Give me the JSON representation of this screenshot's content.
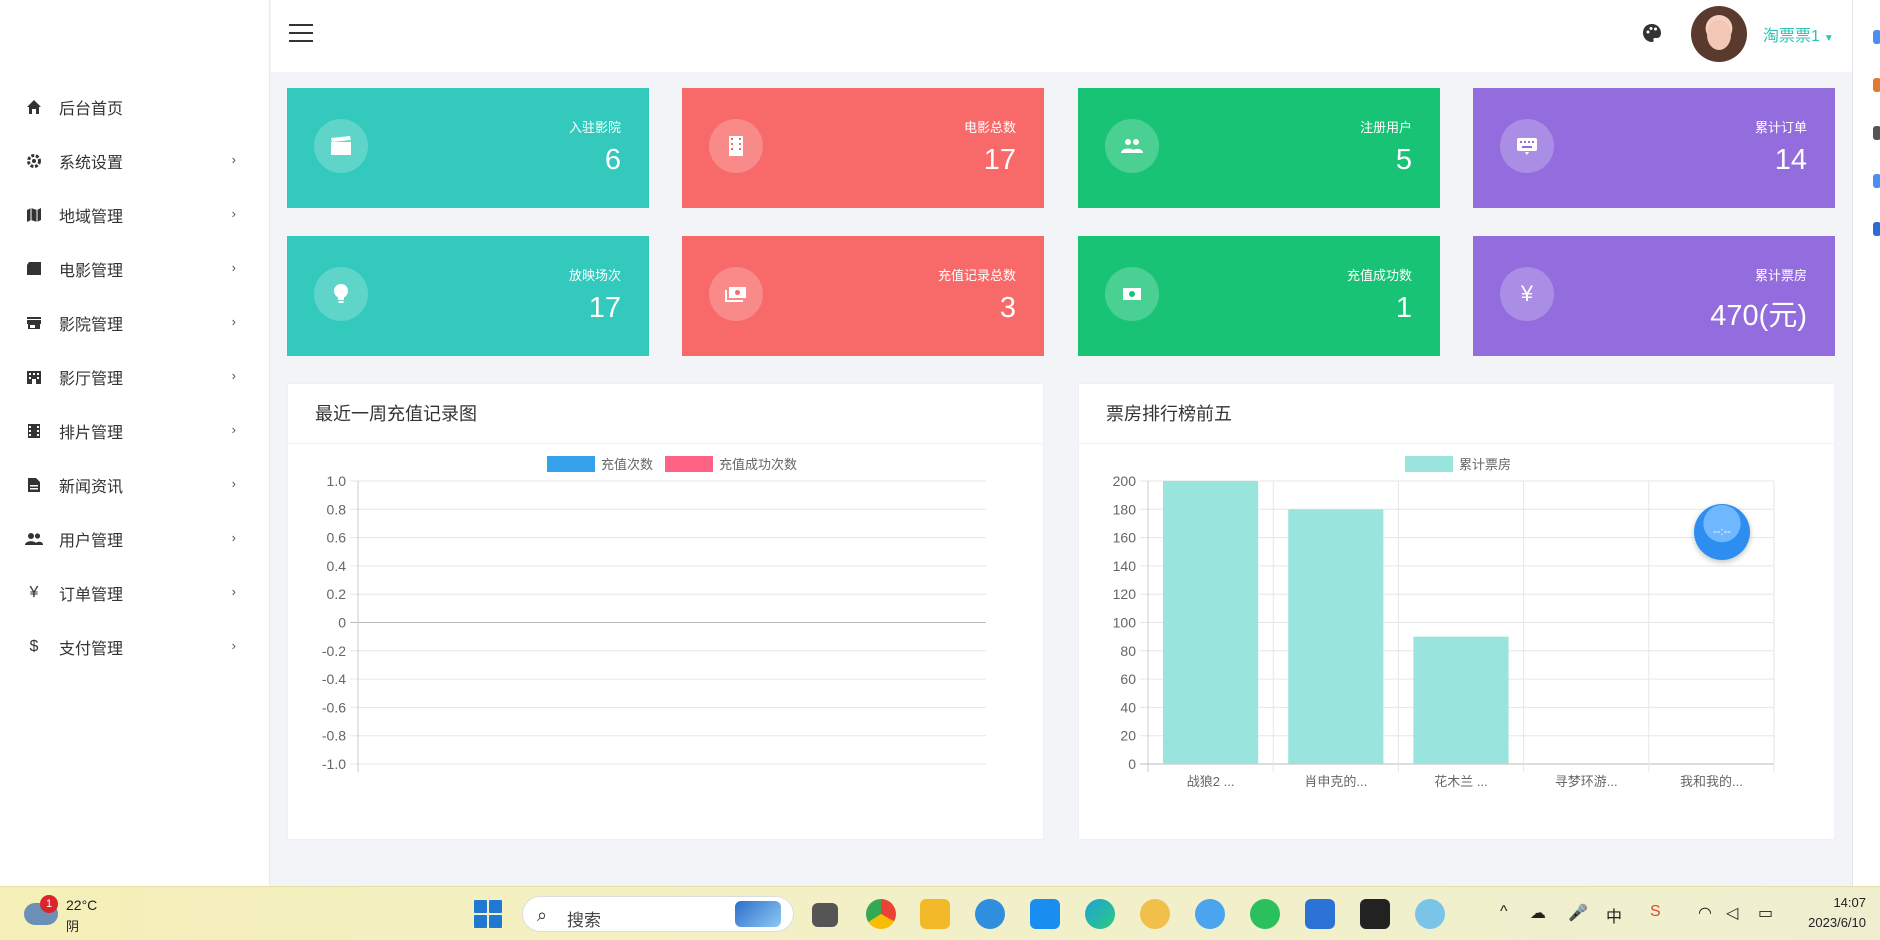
{
  "header": {
    "username": "淘票票1"
  },
  "sidebar": {
    "items": [
      {
        "label": "后台首页",
        "icon": "home-icon"
      },
      {
        "label": "系统设置",
        "icon": "gear-icon"
      },
      {
        "label": "地域管理",
        "icon": "map-icon"
      },
      {
        "label": "电影管理",
        "icon": "film-icon"
      },
      {
        "label": "影院管理",
        "icon": "store-icon"
      },
      {
        "label": "影厅管理",
        "icon": "building-icon"
      },
      {
        "label": "排片管理",
        "icon": "schedule-icon"
      },
      {
        "label": "新闻资讯",
        "icon": "news-icon"
      },
      {
        "label": "用户管理",
        "icon": "users-icon"
      },
      {
        "label": "订单管理",
        "icon": "yen-icon"
      },
      {
        "label": "支付管理",
        "icon": "dollar-icon"
      }
    ]
  },
  "stats": [
    {
      "label": "入驻影院",
      "value": "6",
      "icon": "clapper-icon",
      "color": "#33c9bc"
    },
    {
      "label": "电影总数",
      "value": "17",
      "icon": "film-reel-icon",
      "color": "#f86a6a"
    },
    {
      "label": "注册用户",
      "value": "5",
      "icon": "users-icon",
      "color": "#19c375"
    },
    {
      "label": "累计订单",
      "value": "14",
      "icon": "keyboard-icon",
      "color": "#936ddd"
    },
    {
      "label": "放映场次",
      "value": "17",
      "icon": "bulb-icon",
      "color": "#33c9bc"
    },
    {
      "label": "充值记录总数",
      "value": "3",
      "icon": "money-stack-icon",
      "color": "#f86a6a"
    },
    {
      "label": "充值成功数",
      "value": "1",
      "icon": "money-icon",
      "color": "#19c375"
    },
    {
      "label": "累计票房",
      "value": "470(元)",
      "icon": "yen-icon",
      "color": "#936ddd"
    }
  ],
  "panels": {
    "recharge_title": "最近一周充值记录图",
    "boxoffice_title": "票房排行榜前五"
  },
  "chart_data": [
    {
      "type": "bar",
      "title": "最近一周充值记录图",
      "series": [
        {
          "name": "充值次数",
          "color": "#36a2eb",
          "values": []
        },
        {
          "name": "充值成功次数",
          "color": "#ff6384",
          "values": []
        }
      ],
      "yticks": [
        "1.0",
        "0.8",
        "0.6",
        "0.4",
        "0.2",
        "0",
        "-0.2",
        "-0.4",
        "-0.6",
        "-0.8",
        "-1.0"
      ],
      "ylim": [
        -1.0,
        1.0
      ],
      "legend": "top",
      "grid": true
    },
    {
      "type": "bar",
      "title": "票房排行榜前五",
      "categories": [
        "战狼2 ...",
        "肖申克的...",
        "花木兰 ...",
        "寻梦环游...",
        "我和我的..."
      ],
      "series": [
        {
          "name": "累计票房",
          "color": "#99e4dc",
          "values": [
            200,
            180,
            90,
            0,
            0
          ]
        }
      ],
      "yticks": [
        "200",
        "180",
        "160",
        "140",
        "120",
        "100",
        "80",
        "60",
        "40",
        "20",
        "0"
      ],
      "ylim": [
        0,
        200
      ],
      "legend": "top",
      "grid": true
    }
  ],
  "bubble": {
    "text": "--:--"
  },
  "taskbar": {
    "weather_badge": "1",
    "temperature": "22°C",
    "condition": "阴",
    "search_placeholder": "搜索",
    "ime": "中",
    "time": "14:07",
    "date": "2023/6/10"
  }
}
